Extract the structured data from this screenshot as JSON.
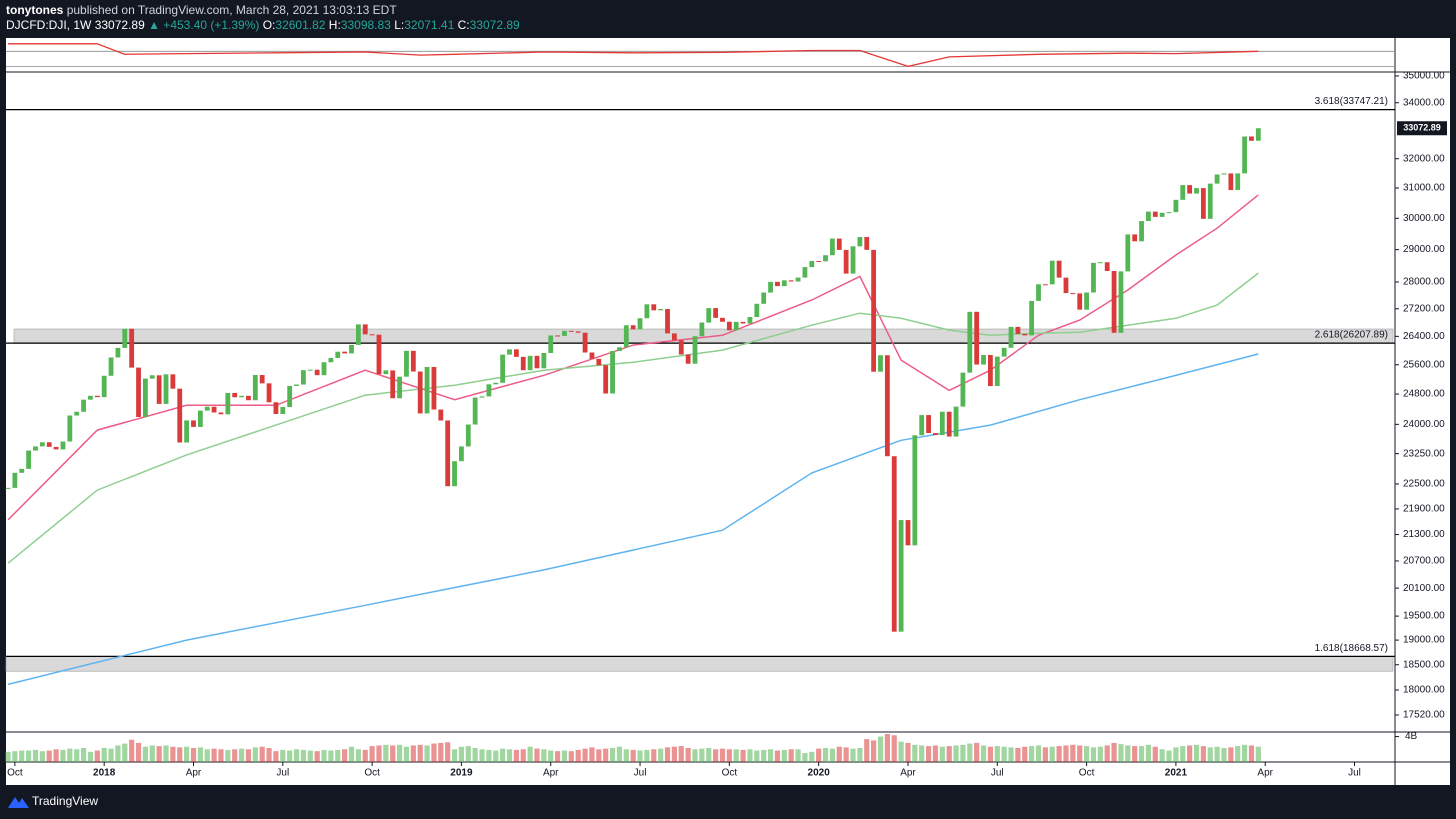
{
  "header": {
    "author": "tonytones",
    "published": "published on TradingView.com, March 28, 2021 13:03:13 EDT",
    "symbol": "DJCFD:DJI, 1W",
    "last": "33072.89",
    "change": "▲ +453.40 (+1.39%)",
    "ohlc": [
      {
        "key": "O:",
        "value": "32601.82"
      },
      {
        "key": "H:",
        "value": "33098.83"
      },
      {
        "key": "L:",
        "value": "32071.41"
      },
      {
        "key": "C:",
        "value": "33072.89"
      }
    ]
  },
  "chart_data": {
    "type": "candlestick",
    "log_scale": true,
    "grid": false,
    "up_color": "#53b553",
    "down_color": "#d93a3a",
    "categories": [
      null,
      "Oct",
      null,
      null,
      null,
      null,
      null,
      null,
      null,
      null,
      null,
      null,
      null,
      null,
      "2018",
      null,
      null,
      null,
      null,
      null,
      null,
      null,
      null,
      null,
      null,
      null,
      null,
      "Apr",
      null,
      null,
      null,
      null,
      null,
      null,
      null,
      null,
      null,
      null,
      null,
      null,
      "Jul",
      null,
      null,
      null,
      null,
      null,
      null,
      null,
      null,
      null,
      null,
      null,
      null,
      "Oct",
      null,
      null,
      null,
      null,
      null,
      null,
      null,
      null,
      null,
      null,
      null,
      null,
      "2019",
      null,
      null,
      null,
      null,
      null,
      null,
      null,
      null,
      null,
      null,
      null,
      null,
      "Apr",
      null,
      null,
      null,
      null,
      null,
      null,
      null,
      null,
      null,
      null,
      null,
      null,
      "Jul",
      null,
      null,
      null,
      null,
      null,
      null,
      null,
      null,
      null,
      null,
      null,
      null,
      "Oct",
      null,
      null,
      null,
      null,
      null,
      null,
      null,
      null,
      null,
      null,
      null,
      null,
      "2020",
      null,
      null,
      null,
      null,
      null,
      null,
      null,
      null,
      null,
      null,
      null,
      null,
      "Apr",
      null,
      null,
      null,
      null,
      null,
      null,
      null,
      null,
      null,
      null,
      null,
      null,
      "Jul",
      null,
      null,
      null,
      null,
      null,
      null,
      null,
      null,
      null,
      null,
      null,
      null,
      "Oct",
      null,
      null,
      null,
      null,
      null,
      null,
      null,
      null,
      null,
      null,
      null,
      null,
      "2021",
      null,
      null,
      null,
      null,
      null,
      null,
      null,
      null,
      null,
      null,
      null,
      null,
      "Apr",
      null,
      null,
      null,
      null,
      null,
      null,
      null,
      null,
      null,
      null,
      null,
      null,
      "Jul",
      null,
      null,
      null,
      null,
      null,
      null
    ],
    "values": [
      22405,
      22774,
      22871,
      23329,
      23434,
      23539,
      23422,
      23358,
      23558,
      24231,
      24329,
      24651,
      24754,
      24719,
      25296,
      25803,
      26072,
      26617,
      25521,
      24191,
      25219,
      25310,
      24538,
      25336,
      24946,
      23533,
      24103,
      23933,
      24360,
      24463,
      24311,
      24263,
      24831,
      24715,
      24753,
      24635,
      25317,
      25090,
      24581,
      24271,
      24456,
      25019,
      25058,
      25451,
      25463,
      25313,
      25669,
      25790,
      25965,
      25917,
      26155,
      26744,
      26458,
      26447,
      25340,
      25444,
      24688,
      25271,
      25989,
      25413,
      24286,
      25538,
      24389,
      24101,
      22445,
      23062,
      23433,
      23996,
      24706,
      24737,
      25064,
      25106,
      25883,
      26031,
      25820,
      25450,
      25849,
      25502,
      25929,
      26425,
      26412,
      26559,
      26543,
      26505,
      25942,
      25764,
      25586,
      24815,
      25984,
      26090,
      26719,
      26600,
      26922,
      27332,
      27154,
      27192,
      26485,
      26287,
      25886,
      25629,
      26403,
      26797,
      27220,
      26935,
      26820,
      26573,
      26817,
      26770,
      26958,
      27347,
      27681,
      28005,
      27876,
      28051,
      28015,
      28135,
      28455,
      28645,
      28635,
      28824,
      29348,
      28990,
      28256,
      29103,
      29398,
      28992,
      25409,
      25865,
      23186,
      19174,
      21637,
      21053,
      23719,
      24242,
      23775,
      23724,
      24331,
      23685,
      24465,
      25383,
      27111,
      25606,
      25871,
      25016,
      25827,
      26075,
      26672,
      26470,
      26428,
      27433,
      27931,
      27930,
      28654,
      28133,
      27666,
      27657,
      27174,
      27683,
      28587,
      28606,
      28336,
      26502,
      28323,
      29480,
      29263,
      29910,
      30218,
      30046,
      30179,
      30200,
      30606,
      31098,
      30814,
      30997,
      29983,
      31148,
      31458,
      31494,
      30932,
      31496,
      32779,
      32628,
      33072.89,
      null,
      null,
      null,
      null,
      null,
      null,
      null,
      null,
      null,
      null,
      null,
      null,
      null,
      null,
      null,
      null,
      null,
      null,
      null,
      null
    ],
    "ylim": [
      17200,
      35150
    ],
    "yticks": [
      {
        "value": 35000,
        "label": "35000.00"
      },
      {
        "value": 34000,
        "label": "34000.00"
      },
      {
        "value": 32000,
        "label": "32000.00"
      },
      {
        "value": 31000,
        "label": "31000.00"
      },
      {
        "value": 30000,
        "label": "30000.00"
      },
      {
        "value": 29000,
        "label": "29000.00"
      },
      {
        "value": 28000,
        "label": "28000.00"
      },
      {
        "value": 27200,
        "label": "27200.00"
      },
      {
        "value": 26400,
        "label": "26400.00"
      },
      {
        "value": 25600,
        "label": "25600.00"
      },
      {
        "value": 24800,
        "label": "24800.00"
      },
      {
        "value": 24000,
        "label": "24000.00"
      },
      {
        "value": 23250,
        "label": "23250.00"
      },
      {
        "value": 22500,
        "label": "22500.00"
      },
      {
        "value": 21900,
        "label": "21900.00"
      },
      {
        "value": 21300,
        "label": "21300.00"
      },
      {
        "value": 20700,
        "label": "20700.00"
      },
      {
        "value": 20100,
        "label": "20100.00"
      },
      {
        "value": 19500,
        "label": "19500.00"
      },
      {
        "value": 19000,
        "label": "19000.00"
      },
      {
        "value": 18500,
        "label": "18500.00"
      },
      {
        "value": 18000,
        "label": "18000.00"
      },
      {
        "value": 17520,
        "label": "17520.00"
      }
    ],
    "last_price": {
      "value": 33072.89,
      "label": "33072.89"
    },
    "levels": [
      {
        "value": 33747.21,
        "label": "3.618(33747.21)"
      },
      {
        "value": 26207.89,
        "label": "2.618(26207.89)"
      },
      {
        "value": 18668.57,
        "label": "1.618(18668.57)"
      }
    ],
    "zones": [
      [
        26200,
        26610
      ],
      [
        18370,
        18668.57
      ]
    ],
    "lines": [
      {
        "color": "#ec5c86",
        "x": [
          0,
          13,
          26,
          39,
          52,
          65,
          78,
          91,
          104,
          117,
          124,
          130,
          137,
          143,
          150,
          156,
          163,
          170,
          176,
          182
        ],
        "values": [
          21640,
          23850,
          24500,
          24500,
          25450,
          24650,
          25310,
          26150,
          26430,
          27460,
          28170,
          25730,
          24900,
          25450,
          26430,
          26870,
          27760,
          28830,
          29680,
          30770
        ]
      },
      {
        "color": "#8fcf8f",
        "x": [
          0,
          13,
          26,
          39,
          52,
          65,
          78,
          91,
          104,
          117,
          124,
          130,
          137,
          143,
          150,
          156,
          163,
          170,
          176,
          182
        ],
        "values": [
          20650,
          22350,
          23220,
          23980,
          24770,
          25040,
          25450,
          25670,
          26010,
          26720,
          27070,
          26920,
          26580,
          26430,
          26490,
          26520,
          26720,
          26920,
          27310,
          28270
        ]
      },
      {
        "color": "#5fb4ef",
        "x": [
          0,
          26,
          52,
          78,
          104,
          117,
          130,
          143,
          156,
          169,
          182
        ],
        "values": [
          18110,
          19000,
          19730,
          20500,
          21400,
          22770,
          23590,
          23980,
          24650,
          25260,
          25900
        ]
      }
    ],
    "indicator": {
      "color": "#e53935",
      "x": [
        0,
        13,
        17,
        26,
        39,
        52,
        60,
        65,
        78,
        91,
        104,
        117,
        124,
        131,
        137,
        150,
        163,
        170,
        182
      ],
      "values": [
        90,
        90,
        62,
        64,
        66,
        68,
        60,
        62,
        68,
        66,
        67,
        72,
        72,
        30,
        55,
        62,
        65,
        64,
        70
      ],
      "ylim": [
        15,
        100
      ],
      "levels": [
        70,
        30
      ]
    },
    "volume": {
      "ylim": [
        0,
        4.4
      ],
      "yticks": [
        {
          "value": 4,
          "label": "4B"
        }
      ],
      "values": [
        1.6,
        1.7,
        1.8,
        1.8,
        1.9,
        1.7,
        1.8,
        2.0,
        1.9,
        2.1,
        2.0,
        2.2,
        1.6,
        1.8,
        2.2,
        2.1,
        2.6,
        2.9,
        3.5,
        3.0,
        2.4,
        2.6,
        2.5,
        2.6,
        2.4,
        2.3,
        2.4,
        2.2,
        2.3,
        2.0,
        2.1,
        2.0,
        1.9,
        2.0,
        2.1,
        2.0,
        2.3,
        2.4,
        2.2,
        1.7,
        1.9,
        1.8,
        2.0,
        1.9,
        1.8,
        1.7,
        1.9,
        1.8,
        1.9,
        2.0,
        2.4,
        2.0,
        1.9,
        2.5,
        2.6,
        2.7,
        2.6,
        2.7,
        2.4,
        2.6,
        2.7,
        2.6,
        2.9,
        3.0,
        3.1,
        2.0,
        2.4,
        2.5,
        2.2,
        2.0,
        1.9,
        1.8,
        2.1,
        2.0,
        1.9,
        2.0,
        2.4,
        2.1,
        2.0,
        1.8,
        1.7,
        1.8,
        1.7,
        1.9,
        2.1,
        2.3,
        2.0,
        2.1,
        2.2,
        2.4,
        2.0,
        1.9,
        1.8,
        1.9,
        2.0,
        2.1,
        2.3,
        2.4,
        2.5,
        2.2,
        2.0,
        2.1,
        2.2,
        2.0,
        2.1,
        2.0,
        2.0,
        1.9,
        2.0,
        1.8,
        1.9,
        2.0,
        1.8,
        1.9,
        2.0,
        2.0,
        1.4,
        1.6,
        2.1,
        2.2,
        2.1,
        2.4,
        2.3,
        2.1,
        2.2,
        3.6,
        3.4,
        4.0,
        4.4,
        4.2,
        3.2,
        3.0,
        2.7,
        2.6,
        2.5,
        2.6,
        2.4,
        2.5,
        2.6,
        2.7,
        2.9,
        3.0,
        2.6,
        2.4,
        2.5,
        2.4,
        2.3,
        2.2,
        2.4,
        2.5,
        2.6,
        2.3,
        2.4,
        2.5,
        2.6,
        2.7,
        2.6,
        2.5,
        2.3,
        2.4,
        2.6,
        3.0,
        2.8,
        2.6,
        2.5,
        2.5,
        2.7,
        2.4,
        2.0,
        1.8,
        2.3,
        2.5,
        2.6,
        2.7,
        2.5,
        2.3,
        2.4,
        2.2,
        2.3,
        2.5,
        2.7,
        2.6,
        2.4,
        null,
        null,
        null,
        null,
        null,
        null,
        null,
        null,
        null,
        null,
        null,
        null,
        null,
        null,
        null,
        null,
        null,
        null,
        null,
        null
      ]
    }
  },
  "footer": {
    "brand": "TradingView"
  }
}
